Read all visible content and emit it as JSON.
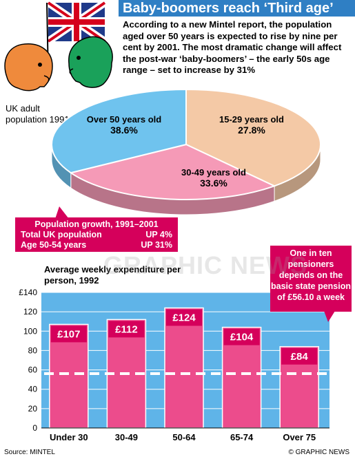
{
  "header": {
    "title": "Baby-boomers reach ‘Third age’",
    "intro": "According to a new Mintel report, the population aged over 50 years is expected to rise by nine per cent by 2001. The most dramatic change will affect the post-war ‘baby-boomers’ – the early 50s age range – set to increase by 31%"
  },
  "pie": {
    "label": "UK adult population 1991",
    "slices": [
      {
        "name": "Over 50 years old",
        "value": "38.6%"
      },
      {
        "name": "15-29 years old",
        "value": "27.8%"
      },
      {
        "name": "30-49 years old",
        "value": "33.6%"
      }
    ]
  },
  "growth": {
    "title": "Population growth, 1991–2001",
    "rows": [
      {
        "label": "Total UK population",
        "value": "UP 4%"
      },
      {
        "label": "Age 50-54 years",
        "value": "UP 31%"
      }
    ]
  },
  "pension_note": "One in ten pensioners depends on the basic state pension of £56.10 a week",
  "bar_title": "Average weekly expenditure per person, 1992",
  "chart_data": [
    {
      "type": "pie",
      "title": "UK adult population 1991",
      "labels": [
        "Over 50 years old",
        "15-29 years old",
        "30-49 years old"
      ],
      "values": [
        38.6,
        27.8,
        33.6
      ],
      "colors": [
        "#f4c9a6",
        "#f59ab7",
        "#6fc3ee"
      ]
    },
    {
      "type": "bar",
      "title": "Average weekly expenditure per person, 1992",
      "categories": [
        "Under 30",
        "30-49",
        "50-64",
        "65-74",
        "Over 75"
      ],
      "values": [
        107,
        112,
        124,
        104,
        84
      ],
      "value_labels": [
        "£107",
        "£112",
        "£124",
        "£104",
        "£84"
      ],
      "yticks": [
        "0",
        "20",
        "40",
        "60",
        "80",
        "100",
        "120",
        "£140"
      ],
      "ylim": [
        0,
        140
      ],
      "reference_line": 56.1,
      "grid": true,
      "bar_color": "#ec4c8c",
      "background_color": "#5fb4e8"
    }
  ],
  "footer": {
    "source": "Source: MINTEL",
    "credit": "© GRAPHIC NEWS"
  },
  "watermark": "GRAPHIC NEWS"
}
